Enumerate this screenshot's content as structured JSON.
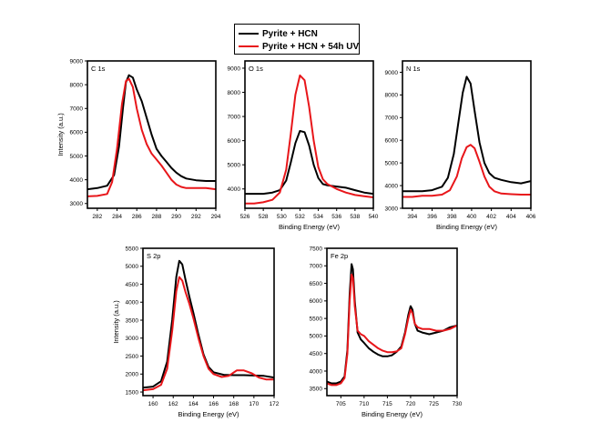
{
  "legend": {
    "items": [
      {
        "label": "Pyrite + HCN",
        "color": "#000000"
      },
      {
        "label": "Pyrite + HCN + 54h UV",
        "color": "#e8161a"
      }
    ]
  },
  "chart_data": [
    {
      "type": "line",
      "panel_label": "C 1s",
      "xlabel": "",
      "ylabel": "Intensity (a.u.)",
      "xlim": [
        281,
        294
      ],
      "ylim": [
        2800,
        9000
      ],
      "xticks": [
        282,
        284,
        286,
        288,
        290,
        292,
        294
      ],
      "yticks": [
        3000,
        4000,
        5000,
        6000,
        7000,
        8000,
        9000
      ],
      "series": [
        {
          "name": "Pyrite + HCN",
          "color": "#000000",
          "x": [
            281,
            282,
            283,
            283.7,
            284.2,
            284.6,
            284.9,
            285.2,
            285.6,
            286.0,
            286.5,
            287.0,
            287.5,
            288.0,
            288.5,
            289.0,
            289.5,
            290.0,
            290.5,
            291.0,
            292.0,
            293.0,
            294.0
          ],
          "y": [
            3600,
            3650,
            3750,
            4200,
            5400,
            7000,
            8100,
            8400,
            8300,
            7800,
            7300,
            6600,
            5900,
            5300,
            5000,
            4750,
            4500,
            4300,
            4150,
            4050,
            3980,
            3950,
            3950
          ]
        },
        {
          "name": "Pyrite + HCN + 54h UV",
          "color": "#e8161a",
          "x": [
            281,
            282,
            283,
            283.5,
            284.0,
            284.5,
            284.9,
            285.2,
            285.6,
            286.0,
            286.5,
            287.0,
            287.5,
            288.0,
            288.5,
            289.0,
            289.5,
            290.0,
            290.5,
            291.0,
            292.0,
            293.0,
            294.0
          ],
          "y": [
            3300,
            3320,
            3400,
            3900,
            5300,
            7200,
            8150,
            8250,
            7900,
            7000,
            6100,
            5500,
            5100,
            4850,
            4600,
            4300,
            4000,
            3800,
            3700,
            3650,
            3650,
            3650,
            3600
          ]
        }
      ]
    },
    {
      "type": "line",
      "panel_label": "O 1s",
      "xlabel": "Binding Energy (eV)",
      "ylabel": "",
      "xlim": [
        526,
        540
      ],
      "ylim": [
        3200,
        9300
      ],
      "xticks": [
        526,
        528,
        530,
        532,
        534,
        536,
        538,
        540
      ],
      "yticks": [
        4000,
        5000,
        6000,
        7000,
        8000,
        9000
      ],
      "series": [
        {
          "name": "Pyrite + HCN",
          "color": "#000000",
          "x": [
            526,
            527,
            528,
            529,
            529.8,
            530.5,
            531.0,
            531.5,
            532.0,
            532.5,
            533.0,
            533.5,
            534.0,
            534.5,
            535.0,
            536.0,
            537.0,
            538.0,
            539.0,
            540.0
          ],
          "y": [
            3800,
            3800,
            3800,
            3850,
            3950,
            4350,
            5100,
            5900,
            6400,
            6350,
            5800,
            5000,
            4450,
            4200,
            4150,
            4100,
            4050,
            3950,
            3850,
            3800
          ]
        },
        {
          "name": "Pyrite + HCN + 54h UV",
          "color": "#e8161a",
          "x": [
            526,
            527,
            528,
            529,
            529.8,
            530.5,
            531.0,
            531.5,
            532.0,
            532.5,
            533.0,
            533.5,
            534.0,
            534.5,
            535.0,
            536.0,
            537.0,
            538.0,
            539.0,
            540.0
          ],
          "y": [
            3400,
            3400,
            3450,
            3550,
            3850,
            4800,
            6300,
            7900,
            8700,
            8500,
            7400,
            6000,
            4900,
            4400,
            4200,
            4000,
            3850,
            3750,
            3700,
            3650
          ]
        }
      ]
    },
    {
      "type": "line",
      "panel_label": "N 1s",
      "xlabel": "Binding Energy (eV)",
      "ylabel": "",
      "xlim": [
        393,
        406
      ],
      "ylim": [
        3000,
        9500
      ],
      "xticks": [
        394,
        396,
        398,
        400,
        402,
        404,
        406
      ],
      "yticks": [
        3000,
        4000,
        5000,
        6000,
        7000,
        8000,
        9000
      ],
      "series": [
        {
          "name": "Pyrite + HCN",
          "color": "#000000",
          "x": [
            393,
            394,
            395,
            396,
            397,
            397.6,
            398.2,
            398.7,
            399.1,
            399.5,
            399.9,
            400.3,
            400.8,
            401.3,
            401.8,
            402.3,
            403.0,
            404.0,
            405.0,
            406.0
          ],
          "y": [
            3750,
            3750,
            3750,
            3800,
            3950,
            4350,
            5400,
            6900,
            8100,
            8800,
            8500,
            7300,
            5900,
            5000,
            4550,
            4350,
            4250,
            4150,
            4100,
            4200
          ]
        },
        {
          "name": "Pyrite + HCN + 54h UV",
          "color": "#e8161a",
          "x": [
            393,
            394,
            395,
            396,
            397,
            397.8,
            398.5,
            399.0,
            399.5,
            399.9,
            400.3,
            400.8,
            401.3,
            401.8,
            402.3,
            403.0,
            404.0,
            405.0,
            406.0
          ],
          "y": [
            3500,
            3500,
            3550,
            3550,
            3600,
            3800,
            4400,
            5200,
            5700,
            5800,
            5650,
            5050,
            4400,
            3950,
            3750,
            3650,
            3620,
            3600,
            3600
          ]
        }
      ]
    },
    {
      "type": "line",
      "panel_label": "S 2p",
      "xlabel": "Binding Energy (eV)",
      "ylabel": "Intensity (a.u.)",
      "xlim": [
        159,
        172
      ],
      "ylim": [
        1400,
        5500
      ],
      "xticks": [
        160,
        162,
        164,
        166,
        168,
        170,
        172
      ],
      "yticks": [
        1500,
        2000,
        2500,
        3000,
        3500,
        4000,
        4500,
        5000,
        5500
      ],
      "series": [
        {
          "name": "Pyrite + HCN",
          "color": "#000000",
          "x": [
            159,
            160,
            160.8,
            161.4,
            161.9,
            162.3,
            162.6,
            162.9,
            163.2,
            163.6,
            164.0,
            164.5,
            165.0,
            165.5,
            166.0,
            167.0,
            168.0,
            169.0,
            170.0,
            171.0,
            172.0
          ],
          "y": [
            1620,
            1650,
            1800,
            2350,
            3500,
            4700,
            5150,
            5050,
            4650,
            4150,
            3700,
            3100,
            2550,
            2200,
            2050,
            1980,
            1970,
            1970,
            1960,
            1950,
            1900
          ]
        },
        {
          "name": "Pyrite + HCN + 54h UV",
          "color": "#e8161a",
          "x": [
            159,
            160,
            160.8,
            161.4,
            161.9,
            162.3,
            162.6,
            162.9,
            163.2,
            163.6,
            164.0,
            164.5,
            165.0,
            165.5,
            166.0,
            166.8,
            167.5,
            168.3,
            169.0,
            169.8,
            170.5,
            171.2,
            172.0
          ],
          "y": [
            1550,
            1580,
            1700,
            2150,
            3200,
            4300,
            4700,
            4600,
            4300,
            3950,
            3550,
            3000,
            2500,
            2150,
            2000,
            1920,
            1950,
            2100,
            2100,
            2020,
            1900,
            1850,
            1850
          ]
        }
      ]
    },
    {
      "type": "line",
      "panel_label": "Fe 2p",
      "xlabel": "Binding Energy (eV)",
      "ylabel": "",
      "xlim": [
        702,
        730
      ],
      "ylim": [
        3300,
        7500
      ],
      "xticks": [
        705,
        710,
        715,
        720,
        725,
        730
      ],
      "yticks": [
        3500,
        4000,
        4500,
        5000,
        5500,
        6000,
        6500,
        7000,
        7500
      ],
      "series": [
        {
          "name": "Pyrite + HCN",
          "color": "#000000",
          "x": [
            702,
            703,
            704,
            705,
            705.8,
            706.4,
            706.9,
            707.3,
            707.6,
            708.0,
            708.6,
            709.3,
            710.0,
            711.0,
            712.0,
            713.0,
            714.0,
            715.0,
            716.0,
            717.0,
            718.0,
            718.8,
            719.5,
            720.0,
            720.4,
            720.9,
            721.5,
            722.5,
            724.0,
            725.5,
            727.0,
            728.5,
            730.0
          ],
          "y": [
            3700,
            3650,
            3650,
            3700,
            3850,
            4600,
            6200,
            7050,
            6900,
            6000,
            5100,
            4900,
            4800,
            4650,
            4550,
            4470,
            4420,
            4420,
            4450,
            4550,
            4700,
            5100,
            5600,
            5850,
            5750,
            5350,
            5150,
            5100,
            5050,
            5100,
            5150,
            5250,
            5300
          ]
        },
        {
          "name": "Pyrite + HCN + 54h UV",
          "color": "#e8161a",
          "x": [
            702,
            703,
            704,
            705,
            705.8,
            706.4,
            706.9,
            707.3,
            707.6,
            708.0,
            708.6,
            709.3,
            710.0,
            711.0,
            712.0,
            713.0,
            714.0,
            715.0,
            716.0,
            717.0,
            718.0,
            718.8,
            719.5,
            720.0,
            720.4,
            720.9,
            721.5,
            722.5,
            724.0,
            725.5,
            727.0,
            728.5,
            730.0
          ],
          "y": [
            3650,
            3600,
            3600,
            3650,
            3800,
            4500,
            6000,
            6750,
            6650,
            5850,
            5150,
            5050,
            5000,
            4850,
            4750,
            4650,
            4580,
            4540,
            4540,
            4560,
            4650,
            5050,
            5500,
            5750,
            5650,
            5350,
            5250,
            5200,
            5200,
            5150,
            5150,
            5200,
            5300
          ]
        }
      ]
    }
  ]
}
